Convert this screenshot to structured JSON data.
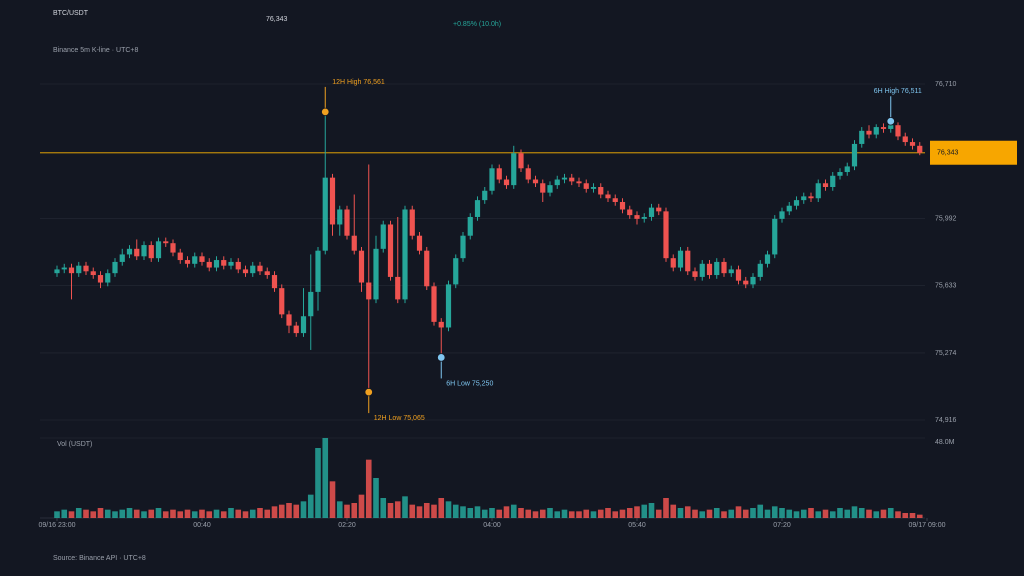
{
  "header": {
    "symbol": "BTC/USDT",
    "price": "76,343",
    "change": "+0.85% (10.0h)",
    "subtitle": "Binance 5m K-line · UTC+8"
  },
  "chart_data": {
    "type": "candlestick",
    "x": [
      "23:00",
      "23:05",
      "23:10",
      "23:15",
      "23:20",
      "23:25",
      "23:30",
      "23:35",
      "23:40",
      "23:45",
      "23:50",
      "23:55",
      "00:00",
      "00:05",
      "00:10",
      "00:15",
      "00:20",
      "00:25",
      "00:30",
      "00:35",
      "00:40",
      "00:45",
      "00:50",
      "00:55",
      "01:00",
      "01:05",
      "01:10",
      "01:15",
      "01:20",
      "01:25",
      "01:30",
      "01:35",
      "01:40",
      "01:45",
      "01:50",
      "01:55",
      "02:00",
      "02:05",
      "02:10",
      "02:15",
      "02:20",
      "02:25",
      "02:30",
      "02:35",
      "02:40",
      "02:45",
      "02:50",
      "02:55",
      "03:00",
      "03:05",
      "03:10",
      "03:15",
      "03:20",
      "03:25",
      "03:30",
      "03:35",
      "03:40",
      "03:45",
      "03:50",
      "03:55",
      "04:00",
      "04:05",
      "04:10",
      "04:15",
      "04:20",
      "04:25",
      "04:30",
      "04:35",
      "04:40",
      "04:45",
      "04:50",
      "04:55",
      "05:00",
      "05:05",
      "05:10",
      "05:15",
      "05:20",
      "05:25",
      "05:30",
      "05:35",
      "05:40",
      "05:45",
      "05:50",
      "05:55",
      "06:00",
      "06:05",
      "06:10",
      "06:15",
      "06:20",
      "06:25",
      "06:30",
      "06:35",
      "06:40",
      "06:45",
      "06:50",
      "06:55",
      "07:00",
      "07:05",
      "07:10",
      "07:15",
      "07:20",
      "07:25",
      "07:30",
      "07:35",
      "07:40",
      "07:45",
      "07:50",
      "07:55",
      "08:00",
      "08:05",
      "08:10",
      "08:15",
      "08:20",
      "08:25",
      "08:30",
      "08:35",
      "08:40",
      "08:45",
      "08:50",
      "08:55"
    ],
    "open": [
      75700,
      75720,
      75730,
      75700,
      75740,
      75710,
      75690,
      75650,
      75700,
      75760,
      75800,
      75830,
      75790,
      75850,
      75780,
      75870,
      75860,
      75810,
      75770,
      75750,
      75790,
      75760,
      75730,
      75770,
      75740,
      75760,
      75720,
      75700,
      75740,
      75710,
      75690,
      75620,
      75480,
      75420,
      75380,
      75470,
      75600,
      75820,
      76210,
      75960,
      76040,
      75900,
      75820,
      75650,
      75560,
      75830,
      75960,
      75680,
      75560,
      76040,
      75900,
      75820,
      75630,
      75440,
      75410,
      75640,
      75780,
      75900,
      76000,
      76090,
      76140,
      76260,
      76200,
      76170,
      76340,
      76260,
      76200,
      76180,
      76130,
      76170,
      76200,
      76210,
      76190,
      76180,
      76150,
      76160,
      76120,
      76100,
      76080,
      76040,
      76010,
      75990,
      76000,
      76050,
      76030,
      75780,
      75730,
      75820,
      75710,
      75680,
      75750,
      75690,
      75760,
      75700,
      75720,
      75660,
      75640,
      75680,
      75750,
      75800,
      75990,
      76030,
      76060,
      76090,
      76110,
      76100,
      76180,
      76160,
      76220,
      76240,
      76270,
      76390,
      76460,
      76440,
      76480,
      76470,
      76490,
      76430,
      76400,
      76380
    ],
    "high": [
      75740,
      75750,
      75750,
      75760,
      75760,
      75730,
      75710,
      75720,
      75780,
      75830,
      75850,
      75880,
      75870,
      75870,
      75890,
      75890,
      75880,
      75830,
      75790,
      75810,
      75810,
      75780,
      75790,
      75790,
      75780,
      75780,
      75740,
      75760,
      75760,
      75730,
      75710,
      75640,
      75500,
      75440,
      75620,
      75800,
      75840,
      76561,
      76230,
      76060,
      76060,
      76120,
      75840,
      76280,
      75900,
      75980,
      75980,
      76000,
      76060,
      76060,
      75920,
      75840,
      75650,
      75460,
      75660,
      75800,
      75920,
      76020,
      76110,
      76160,
      76280,
      76280,
      76220,
      76380,
      76360,
      76280,
      76220,
      76200,
      76190,
      76220,
      76230,
      76230,
      76210,
      76200,
      76180,
      76180,
      76140,
      76120,
      76100,
      76060,
      76030,
      76020,
      76070,
      76070,
      76050,
      75800,
      75840,
      75840,
      75730,
      75770,
      75770,
      75780,
      75780,
      75740,
      75740,
      75680,
      75700,
      75770,
      75820,
      76010,
      76050,
      76080,
      76110,
      76130,
      76130,
      76200,
      76200,
      76240,
      76260,
      76290,
      76410,
      76480,
      76490,
      76495,
      76500,
      76511,
      76505,
      76450,
      76420,
      76400
    ],
    "low": [
      75680,
      75700,
      75560,
      75680,
      75690,
      75670,
      75620,
      75630,
      75680,
      75740,
      75780,
      75770,
      75770,
      75760,
      75760,
      75840,
      75790,
      75750,
      75730,
      75730,
      75740,
      75710,
      75710,
      75720,
      75720,
      75700,
      75680,
      75680,
      75690,
      75670,
      75600,
      75460,
      75380,
      75360,
      75360,
      75290,
      75500,
      75800,
      75900,
      75900,
      75880,
      75800,
      75600,
      75065,
      75540,
      75810,
      75660,
      75540,
      75540,
      75880,
      75800,
      75610,
      75420,
      75250,
      75390,
      75620,
      75760,
      75880,
      75980,
      76070,
      76120,
      76180,
      76150,
      76150,
      76240,
      76180,
      76160,
      76080,
      76110,
      76150,
      76180,
      76170,
      76160,
      76130,
      76130,
      76100,
      76080,
      76060,
      76020,
      75990,
      75960,
      75970,
      75980,
      76010,
      75760,
      75710,
      75710,
      75690,
      75660,
      75660,
      75670,
      75670,
      75680,
      75680,
      75640,
      75620,
      75620,
      75660,
      75730,
      75780,
      75970,
      76010,
      76040,
      76070,
      76080,
      76080,
      76140,
      76140,
      76200,
      76220,
      76250,
      76370,
      76420,
      76420,
      76450,
      76450,
      76410,
      76380,
      76360,
      76330
    ],
    "close": [
      75720,
      75730,
      75700,
      75740,
      75710,
      75690,
      75650,
      75700,
      75760,
      75800,
      75830,
      75790,
      75850,
      75780,
      75870,
      75860,
      75810,
      75770,
      75750,
      75790,
      75760,
      75730,
      75770,
      75740,
      75760,
      75720,
      75700,
      75740,
      75710,
      75690,
      75620,
      75480,
      75420,
      75380,
      75470,
      75600,
      75820,
      76210,
      75960,
      76040,
      75900,
      75820,
      75650,
      75560,
      75830,
      75960,
      75680,
      75560,
      76040,
      75900,
      75820,
      75630,
      75440,
      75410,
      75640,
      75780,
      75900,
      76000,
      76090,
      76140,
      76260,
      76200,
      76170,
      76340,
      76260,
      76200,
      76180,
      76130,
      76170,
      76200,
      76210,
      76190,
      76180,
      76150,
      76160,
      76120,
      76100,
      76080,
      76040,
      76010,
      75990,
      76000,
      76050,
      76030,
      75780,
      75730,
      75820,
      75710,
      75680,
      75750,
      75690,
      75760,
      75700,
      75720,
      75660,
      75640,
      75680,
      75750,
      75800,
      75990,
      76030,
      76060,
      76090,
      76110,
      76100,
      76180,
      76160,
      76220,
      76240,
      76270,
      76390,
      76460,
      76440,
      76480,
      76470,
      76490,
      76430,
      76400,
      76380,
      76343
    ],
    "volume": [
      4,
      5,
      4,
      6,
      5,
      4,
      6,
      5,
      4,
      5,
      6,
      5,
      4,
      5,
      6,
      4,
      5,
      4,
      5,
      4,
      5,
      4,
      5,
      4,
      6,
      5,
      4,
      5,
      6,
      5,
      7,
      8,
      9,
      8,
      10,
      14,
      42,
      48,
      22,
      10,
      8,
      9,
      14,
      35,
      24,
      12,
      9,
      10,
      13,
      8,
      7,
      9,
      8,
      12,
      10,
      8,
      7,
      6,
      7,
      5,
      6,
      5,
      7,
      8,
      6,
      5,
      4,
      5,
      6,
      4,
      5,
      4,
      4,
      5,
      4,
      5,
      6,
      4,
      5,
      6,
      7,
      8,
      9,
      5,
      12,
      8,
      6,
      7,
      5,
      4,
      5,
      6,
      4,
      5,
      7,
      5,
      6,
      8,
      5,
      7,
      6,
      5,
      4,
      5,
      6,
      4,
      5,
      4,
      6,
      5,
      7,
      6,
      5,
      4,
      5,
      6,
      4,
      3,
      3,
      2
    ],
    "up_color": "#26a69a",
    "down_color": "#ef5350",
    "ylim": [
      74916,
      76710
    ],
    "yticks": [
      {
        "value": 74916,
        "label": "74,916"
      },
      {
        "value": 75274,
        "label": "75,274"
      },
      {
        "value": 75633,
        "label": "75,633"
      },
      {
        "value": 75992,
        "label": "75,992"
      },
      {
        "value": 76710,
        "label": "76,710"
      }
    ],
    "volume_label": "Vol (USDT)",
    "vlim": [
      0,
      48
    ],
    "vticks": [
      {
        "value": 48,
        "label": "48.0M"
      }
    ],
    "xticks": [
      {
        "value": "23:00",
        "label": "09/16 23:00"
      },
      {
        "value": "00:40",
        "label": "00:40"
      },
      {
        "value": "02:20",
        "label": "02:20"
      },
      {
        "value": "04:00",
        "label": "04:00"
      },
      {
        "value": "05:40",
        "label": "05:40"
      },
      {
        "value": "07:20",
        "label": "07:20"
      },
      {
        "value": "09:00",
        "label": "09/17 09:00"
      }
    ],
    "last_price": {
      "value": 76343,
      "label": "76,343"
    },
    "last_color": "#f7a600",
    "annotations": [
      {
        "label": "12H High 76,561",
        "value": 76561,
        "x": "02:05",
        "side": "above",
        "color": "#f0a020"
      },
      {
        "label": "12H Low 75,065",
        "value": 75065,
        "x": "02:35",
        "side": "below",
        "color": "#f0a020"
      },
      {
        "label": "6H High 76,511",
        "value": 76511,
        "x": "08:35",
        "side": "above",
        "color": "#7fc6f0"
      },
      {
        "label": "6H Low 75,250",
        "value": 75250,
        "x": "03:25",
        "side": "below",
        "color": "#7fc6f0"
      }
    ]
  },
  "footer": "Source: Binance API · UTC+8"
}
